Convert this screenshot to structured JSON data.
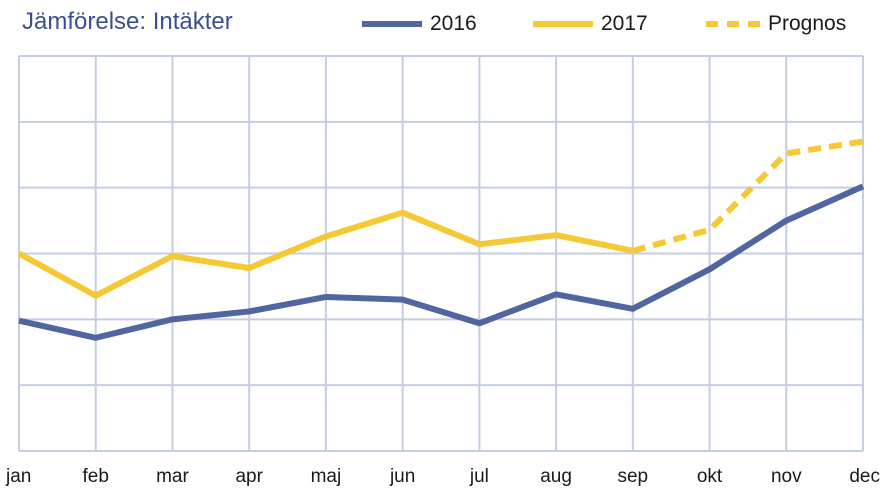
{
  "chart_data": {
    "type": "line",
    "title": "Jämförelse: Intäkter",
    "categories": [
      "jan",
      "feb",
      "mar",
      "apr",
      "maj",
      "jun",
      "jul",
      "aug",
      "sep",
      "okt",
      "nov",
      "dec"
    ],
    "series": [
      {
        "name": "2016",
        "values": [
          3.9,
          2.6,
          4.0,
          4.6,
          5.7,
          5.5,
          3.7,
          5.9,
          4.8,
          7.8,
          11.5,
          14.1
        ],
        "color": "#5166a0",
        "style": "solid"
      },
      {
        "name": "2017",
        "values": [
          9.0,
          5.8,
          8.8,
          7.9,
          10.3,
          12.1,
          9.7,
          10.4,
          9.2,
          null,
          null,
          null
        ],
        "color": "#f4c935",
        "style": "solid"
      },
      {
        "name": "Prognos",
        "values": [
          null,
          null,
          null,
          null,
          null,
          null,
          null,
          null,
          9.2,
          10.8,
          16.6,
          17.5
        ],
        "color": "#f4c935",
        "style": "dashed"
      }
    ],
    "ylim": [
      -6,
      24
    ],
    "y_gridlines": [
      -6,
      -1,
      4,
      9,
      14,
      19,
      24
    ],
    "grid": true,
    "legend_position": "top-right",
    "ytick_labels_visible": false
  }
}
